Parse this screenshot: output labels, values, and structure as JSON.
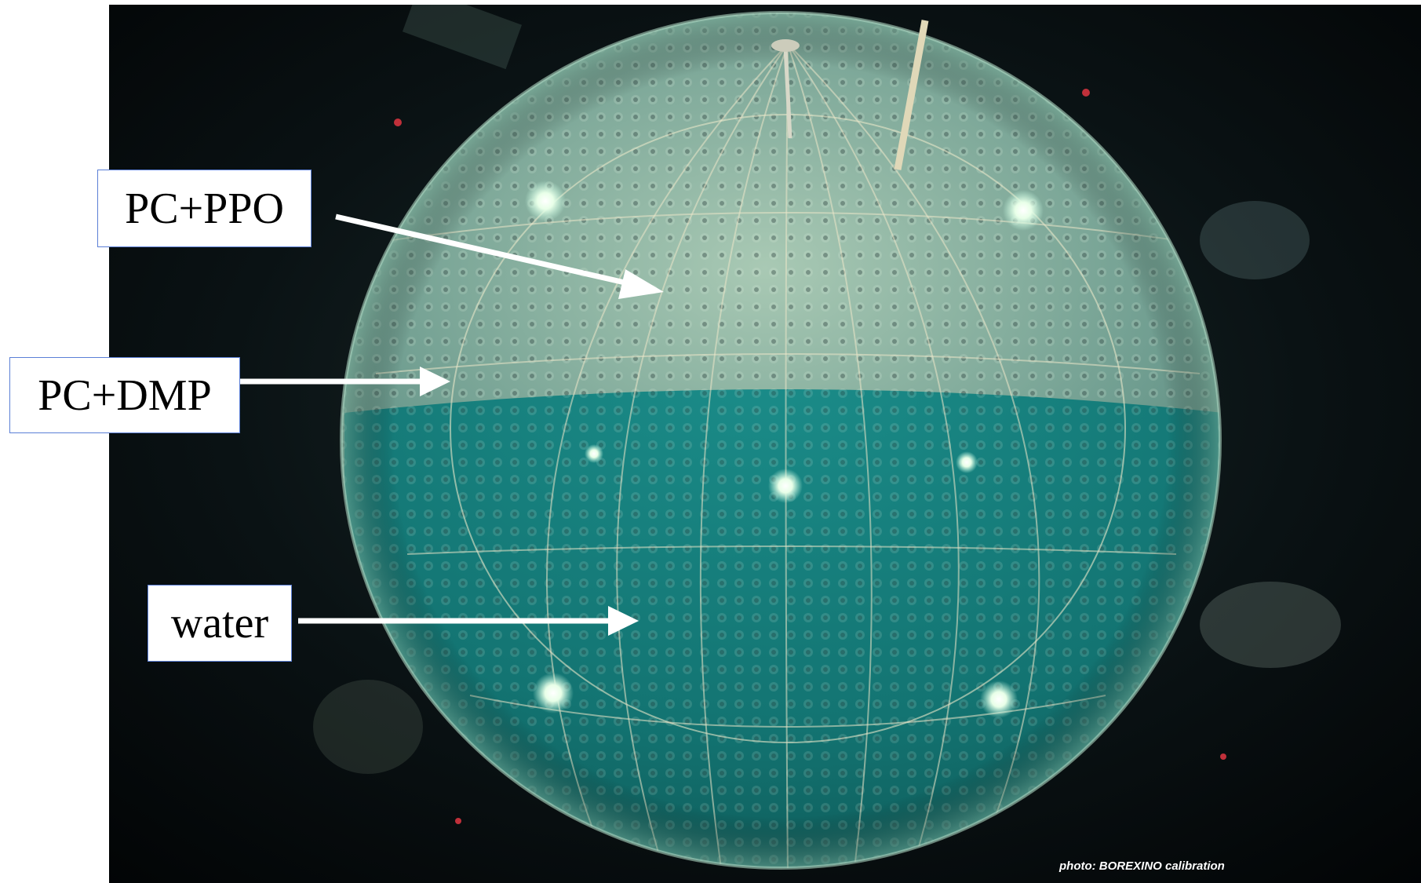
{
  "labels": {
    "pc_ppo": "PC+PPO",
    "pc_dmp": "PC+DMP",
    "water": "water"
  },
  "credit": "photo: BOREXINO calibration",
  "colors": {
    "label_border": "#5b7fd6",
    "arrow": "#ffffff",
    "liquid": "#2aa6a0",
    "background": "#050a0c"
  }
}
